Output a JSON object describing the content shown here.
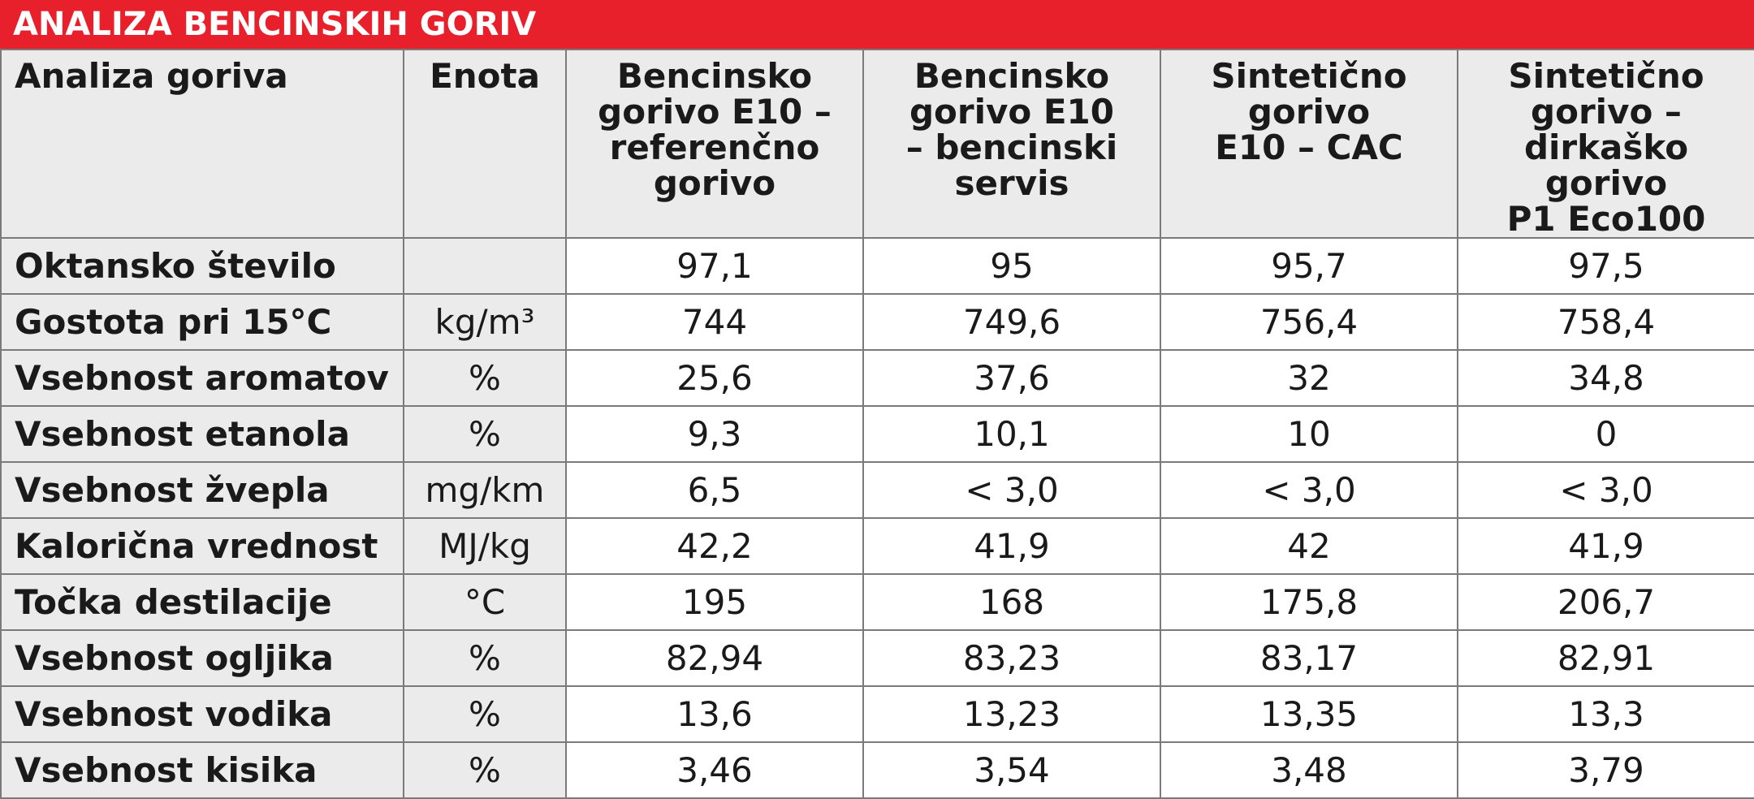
{
  "title": "ANALIZA BENCINSKIH GORIV",
  "colors": {
    "title_bar": "#e8202b",
    "header_bg": "#ebebeb",
    "border": "#7a7a7a"
  },
  "chart_data": {
    "type": "table",
    "title": "ANALIZA BENCINSKIH GORIV",
    "columns": [
      "Analiza goriva",
      "Enota",
      "Bencinsko\ngorivo E10 –\nreferenčno\ngorivo",
      "Bencinsko\ngorivo E10\n– bencinski\nservis",
      "Sintetično\ngorivo\nE10 – CAC",
      "Sintetično\ngorivo –\ndirkaško gorivo\nP1 Eco100"
    ],
    "rows": [
      [
        "Oktansko število",
        "",
        "97,1",
        "95",
        "95,7",
        "97,5"
      ],
      [
        "Gostota pri 15°C",
        "kg/m³",
        "744",
        "749,6",
        "756,4",
        "758,4"
      ],
      [
        "Vsebnost aromatov",
        "%",
        "25,6",
        "37,6",
        "32",
        "34,8"
      ],
      [
        "Vsebnost etanola",
        "%",
        "9,3",
        "10,1",
        "10",
        "0"
      ],
      [
        "Vsebnost žvepla",
        "mg/km",
        "6,5",
        "< 3,0",
        "< 3,0",
        "< 3,0"
      ],
      [
        "Kalorična vrednost",
        "MJ/kg",
        "42,2",
        "41,9",
        "42",
        "41,9"
      ],
      [
        "Točka destilacije",
        "°C",
        "195",
        "168",
        "175,8",
        "206,7"
      ],
      [
        "Vsebnost ogljika",
        "%",
        "82,94",
        "83,23",
        "83,17",
        "82,91"
      ],
      [
        "Vsebnost vodika",
        "%",
        "13,6",
        "13,23",
        "13,35",
        "13,3"
      ],
      [
        "Vsebnost kisika",
        "%",
        "3,46",
        "3,54",
        "3,48",
        "3,79"
      ]
    ]
  }
}
